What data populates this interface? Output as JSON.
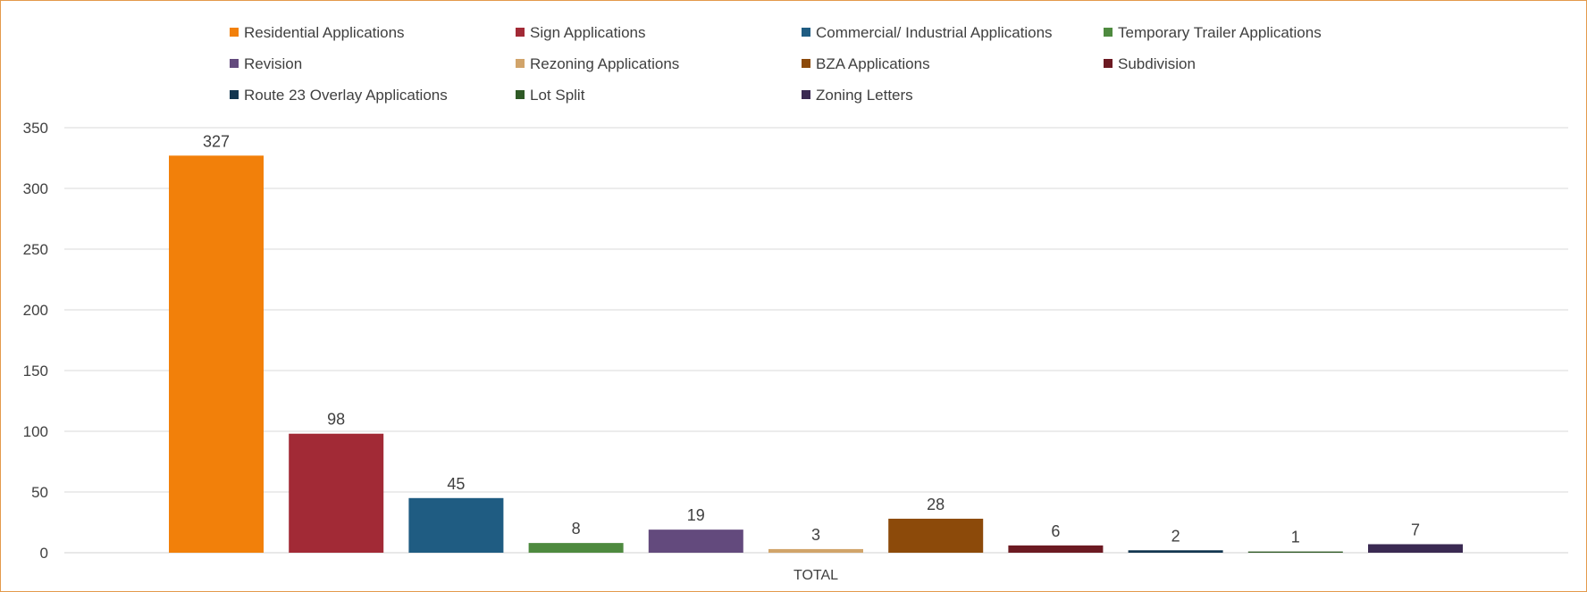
{
  "chart_data": {
    "type": "bar",
    "categories": [
      "TOTAL"
    ],
    "series": [
      {
        "name": "Residential Applications",
        "values": [
          327
        ],
        "color": "#F2800A"
      },
      {
        "name": "Sign Applications",
        "values": [
          98
        ],
        "color": "#A22A36"
      },
      {
        "name": "Commercial/ Industrial Applications",
        "values": [
          45
        ],
        "color": "#1F5C82"
      },
      {
        "name": "Temporary Trailer Applications",
        "values": [
          8
        ],
        "color": "#4E8A3F"
      },
      {
        "name": "Revision",
        "values": [
          19
        ],
        "color": "#634A7D"
      },
      {
        "name": "Rezoning Applications",
        "values": [
          3
        ],
        "color": "#D1A46A"
      },
      {
        "name": "BZA Applications",
        "values": [
          28
        ],
        "color": "#8C4A0A"
      },
      {
        "name": "Subdivision",
        "values": [
          6
        ],
        "color": "#6C1A22"
      },
      {
        "name": "Route 23 Overlay Applications",
        "values": [
          2
        ],
        "color": "#133650"
      },
      {
        "name": "Lot Split",
        "values": [
          1
        ],
        "color": "#2F5A26"
      },
      {
        "name": "Zoning Letters",
        "values": [
          7
        ],
        "color": "#3A2A52"
      }
    ],
    "yticks": [
      "0",
      "50",
      "100",
      "150",
      "200",
      "250",
      "300",
      "350"
    ],
    "ylim": [
      0,
      350
    ],
    "grid": true,
    "legend_position": "top",
    "data_labels": true
  }
}
